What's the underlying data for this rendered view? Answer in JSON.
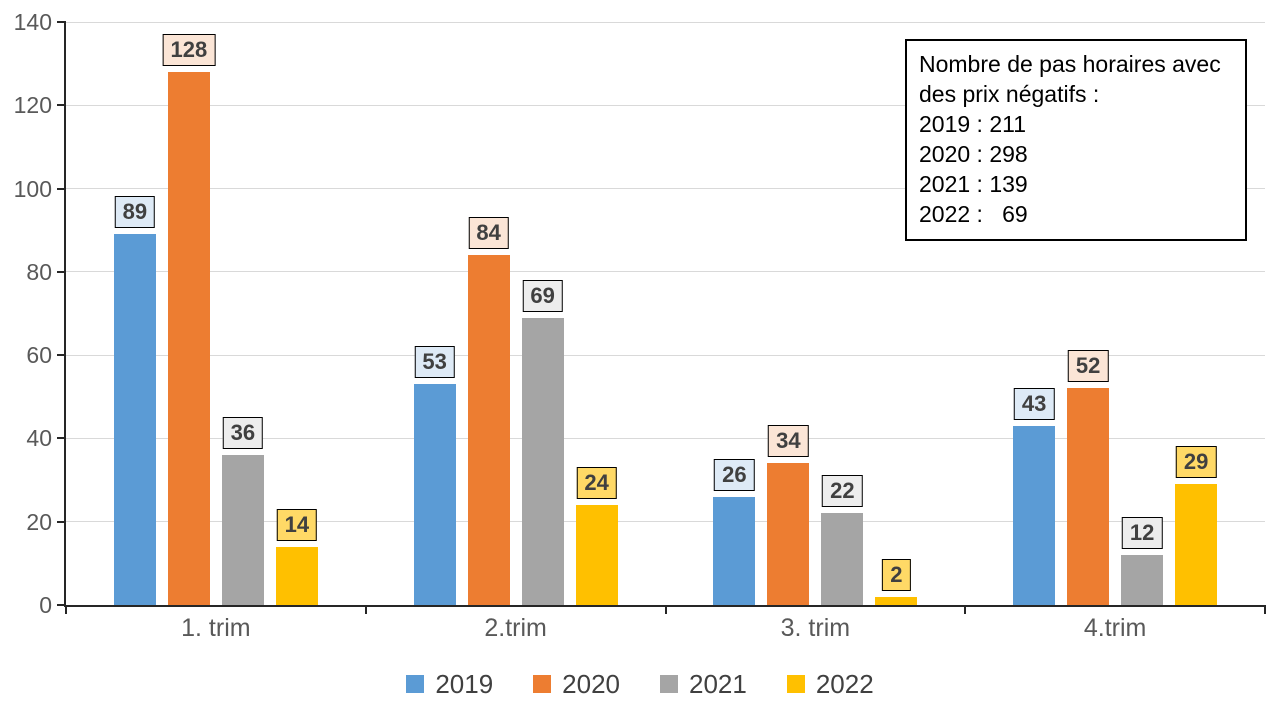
{
  "chart_data": {
    "type": "bar",
    "title": "",
    "xlabel": "",
    "ylabel": "",
    "categories": [
      "1. trim",
      "2.trim",
      "3. trim",
      "4.trim"
    ],
    "series": [
      {
        "name": "2019",
        "color": "#5B9BD5",
        "label_bg": "#DEEAF6",
        "values": [
          89,
          53,
          26,
          43
        ]
      },
      {
        "name": "2020",
        "color": "#ED7D31",
        "label_bg": "#FBE5D6",
        "values": [
          128,
          84,
          34,
          52
        ]
      },
      {
        "name": "2021",
        "color": "#A5A5A5",
        "label_bg": "#EDEDED",
        "values": [
          36,
          69,
          22,
          12
        ]
      },
      {
        "name": "2022",
        "color": "#FFC000",
        "label_bg": "#FFD966",
        "values": [
          14,
          24,
          2,
          29
        ]
      }
    ],
    "ylim": [
      0,
      140
    ],
    "yticks": [
      0,
      20,
      40,
      60,
      80,
      100,
      120,
      140
    ],
    "grid": true,
    "gridline_color": "#d9d9d9",
    "axis_color": "#262626",
    "tick_label_color": "#595959",
    "data_labels": true,
    "data_label_text_color": "#404040",
    "legend_position": "bottom"
  },
  "annotation_box": {
    "lines": [
      "Nombre de pas horaires avec",
      "des prix négatifs :",
      "2019 : 211",
      "2020 : 298",
      "2021 : 139",
      "2022 :   69"
    ]
  }
}
